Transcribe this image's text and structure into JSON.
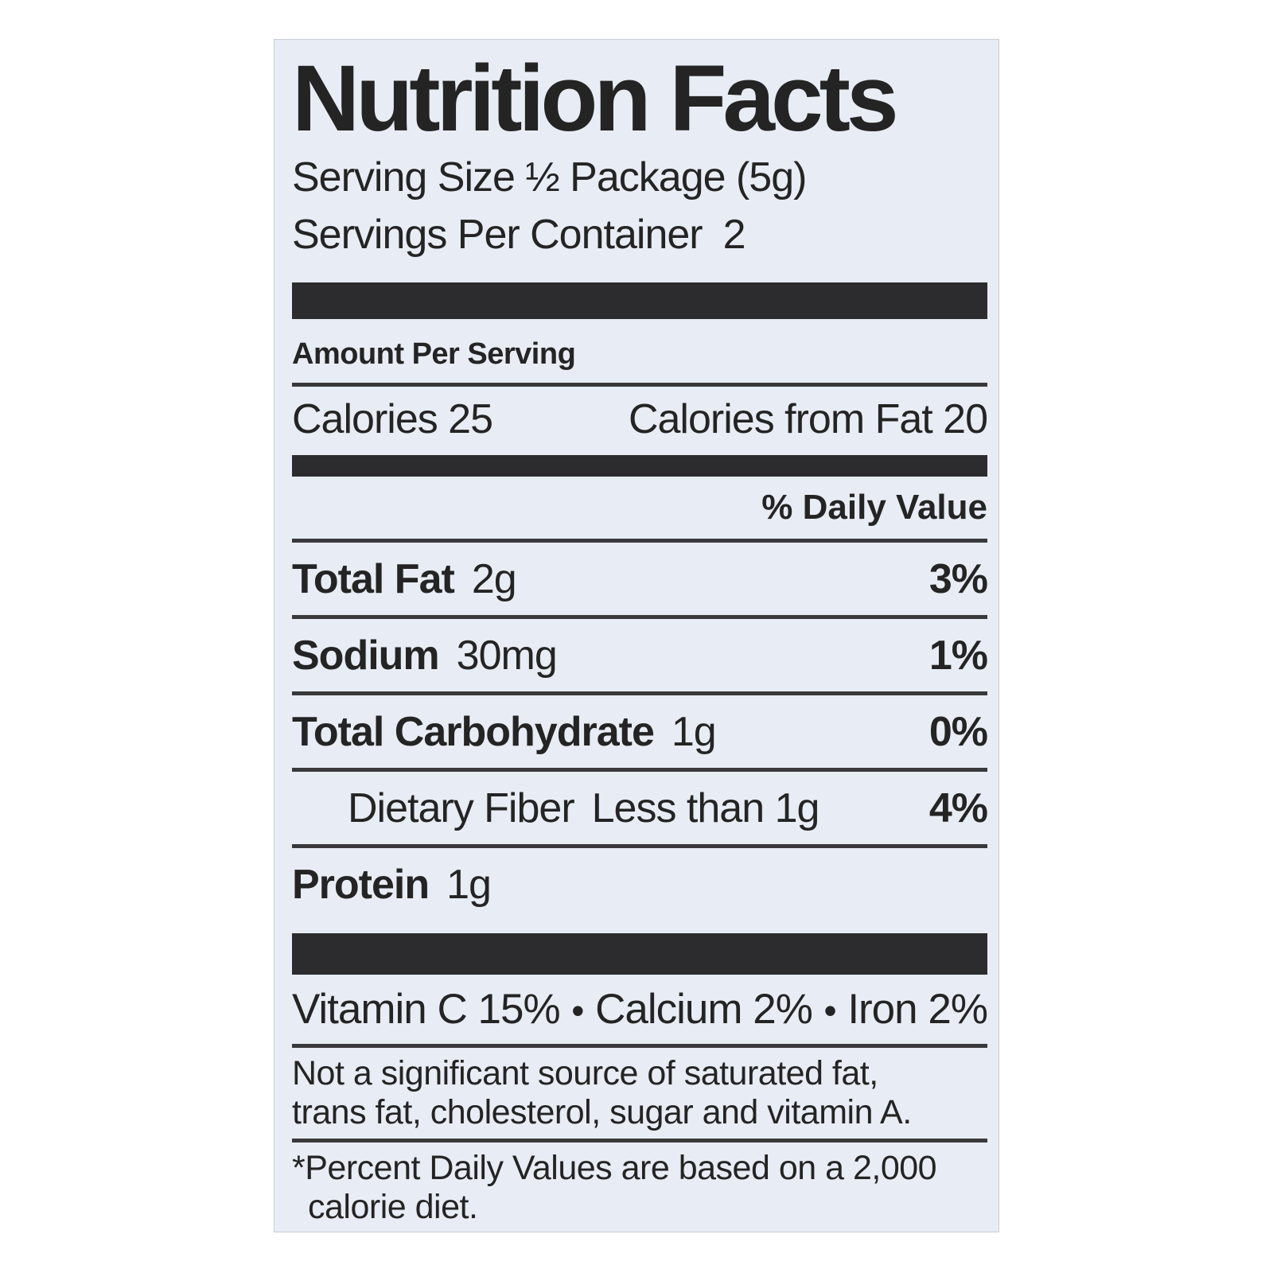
{
  "nutrition": {
    "title": "Nutrition Facts",
    "serving_size": "Serving Size ½ Package (5g)",
    "servings_per_container_label": "Servings Per Container",
    "servings_per_container_value": "2",
    "amount_per_serving": "Amount Per Serving",
    "calories_label": "Calories 25",
    "calories_from_fat_label": "Calories from Fat 20",
    "daily_value_header": "% Daily Value",
    "nutrients": [
      {
        "name": "Total Fat",
        "amount": "2g",
        "dv": "3%"
      },
      {
        "name": "Sodium",
        "amount": "30mg",
        "dv": "1%"
      },
      {
        "name": "Total Carbohydrate",
        "amount": "1g",
        "dv": "0%"
      },
      {
        "name": "Dietary Fiber",
        "amount": "Less than 1g",
        "dv": "4%"
      },
      {
        "name": "Protein",
        "amount": "1g",
        "dv": ""
      }
    ],
    "vitamins": {
      "items": [
        "Vitamin C 15%",
        "Calcium 2%",
        "Iron 2%"
      ],
      "separator": "•"
    },
    "not_significant_line1": "Not a significant source of saturated fat,",
    "not_significant_line2": "trans fat, cholesterol, sugar and vitamin A.",
    "footnote_line1": "*Percent Daily Values are based on a 2,000",
    "footnote_line2": "calorie diet."
  },
  "colors": {
    "page_bg": "#ffffff",
    "label_bg": "#e8ecf4",
    "label_border": "#c9cdd3",
    "text": "#242424",
    "bar": "#2c2c2e",
    "hairline": "#39393b"
  }
}
